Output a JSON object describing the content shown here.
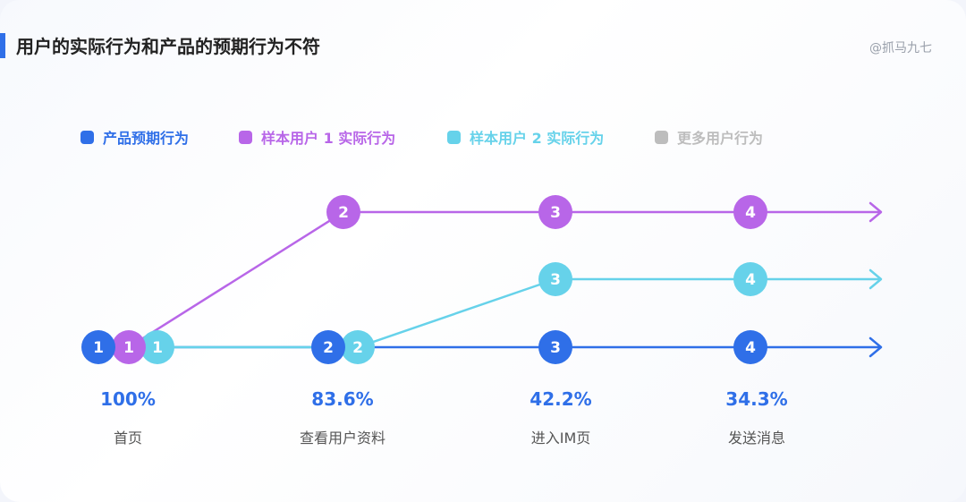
{
  "title": "用户的实际行为和产品的预期行为不符",
  "watermark": "@抓马九七",
  "colors": {
    "product": "#2f6fe8",
    "user1": "#b866e8",
    "user2": "#66d2ea",
    "more": "#bdbdbd"
  },
  "legend": [
    {
      "label": "产品预期行为",
      "color": "#2f6fe8"
    },
    {
      "label": "样本用户 1 实际行为",
      "color": "#b866e8"
    },
    {
      "label": "样本用户 2 实际行为",
      "color": "#66d2ea"
    },
    {
      "label": "更多用户行为",
      "color": "#bdbdbd"
    }
  ],
  "steps": [
    {
      "pct": "100%",
      "label": "首页"
    },
    {
      "pct": "83.6%",
      "label": "查看用户资料"
    },
    {
      "pct": "42.2%",
      "label": "进入IM页"
    },
    {
      "pct": "34.3%",
      "label": "发送消息"
    }
  ],
  "paths": {
    "user1": [
      "1",
      "2",
      "3",
      "4"
    ],
    "user2": [
      "1",
      "2",
      "3",
      "4"
    ],
    "product": [
      "1",
      "2",
      "3",
      "4"
    ]
  }
}
